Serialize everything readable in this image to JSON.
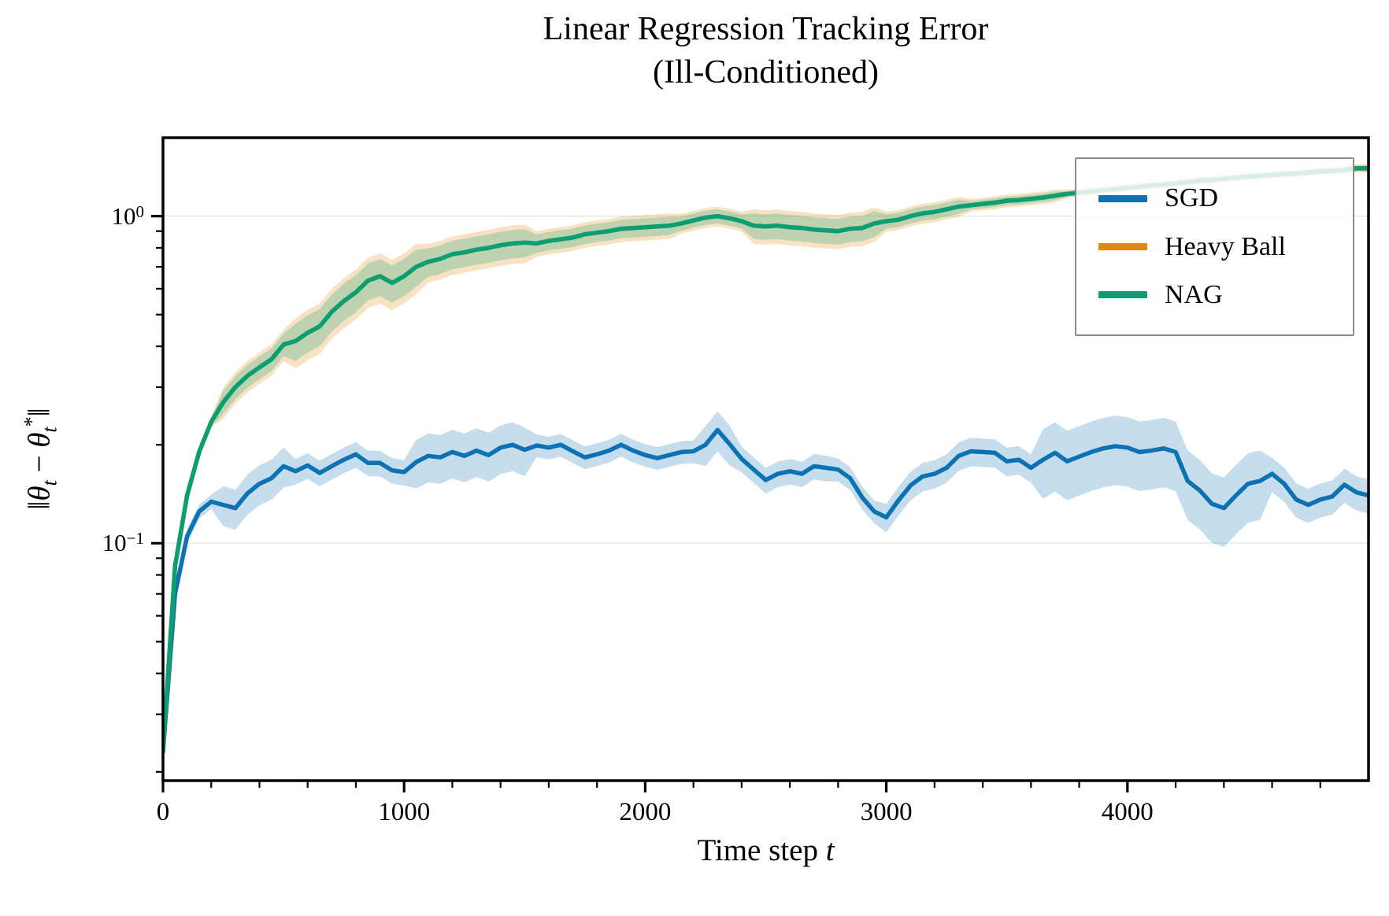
{
  "title_line1": "Linear Regression Tracking Error",
  "title_line2": "(Ill-Conditioned)",
  "labels": {
    "x_pre": "Time step ",
    "x_var": "t",
    "y_open": "‖",
    "y_theta": "θ",
    "y_sub": "t",
    "y_minus": " − ",
    "y_theta2": "θ",
    "y_sub2": "t",
    "y_star": "*",
    "y_close": "‖"
  },
  "chart_data": {
    "type": "line",
    "title": "Linear Regression Tracking Error (Ill-Conditioned)",
    "xlabel": "Time step t",
    "ylabel": "||theta_t - theta_t*||",
    "yscale": "log",
    "ylim": [
      0.0188,
      1.737
    ],
    "xlim": [
      0,
      5000
    ],
    "grid": "major-y only, light gray",
    "legend_position": "upper right",
    "x_start": 0,
    "x_step": 50,
    "x_ticks": [
      {
        "v": 0,
        "label": "0"
      },
      {
        "v": 1000,
        "label": "1000"
      },
      {
        "v": 2000,
        "label": "2000"
      },
      {
        "v": 3000,
        "label": "3000"
      },
      {
        "v": 4000,
        "label": "4000"
      }
    ],
    "x_minor": [
      200,
      400,
      600,
      800,
      1200,
      1400,
      1600,
      1800,
      2200,
      2400,
      2600,
      2800,
      3200,
      3400,
      3600,
      3800,
      4200,
      4400,
      4600,
      4800
    ],
    "y_ticks": [
      {
        "v": 1,
        "base": "10",
        "exp": "0"
      },
      {
        "v": 0.1,
        "base": "10",
        "exp": "−1"
      }
    ],
    "y_minor": [
      0.02,
      0.03,
      0.04,
      0.05,
      0.06,
      0.07,
      0.08,
      0.09,
      0.2,
      0.3,
      0.4,
      0.5,
      0.6,
      0.7,
      0.8,
      0.9
    ],
    "grid_color": "#e8e8e8",
    "axis_color": "#000000",
    "legend_border_color": "#8c8c8c",
    "band_alpha": 0.24,
    "series": [
      {
        "name": "SGD",
        "color": "#0d72b2",
        "mean": [
          0.023,
          0.07,
          0.105,
          0.125,
          0.134,
          0.131,
          0.128,
          0.142,
          0.152,
          0.158,
          0.172,
          0.166,
          0.173,
          0.164,
          0.172,
          0.18,
          0.187,
          0.176,
          0.176,
          0.167,
          0.165,
          0.177,
          0.185,
          0.183,
          0.19,
          0.185,
          0.192,
          0.186,
          0.196,
          0.2,
          0.193,
          0.199,
          0.196,
          0.2,
          0.191,
          0.183,
          0.187,
          0.192,
          0.2,
          0.192,
          0.186,
          0.182,
          0.186,
          0.19,
          0.191,
          0.2,
          0.222,
          0.201,
          0.181,
          0.168,
          0.156,
          0.163,
          0.166,
          0.163,
          0.172,
          0.17,
          0.168,
          0.158,
          0.138,
          0.125,
          0.12,
          0.135,
          0.15,
          0.16,
          0.163,
          0.17,
          0.185,
          0.191,
          0.19,
          0.189,
          0.178,
          0.18,
          0.17,
          0.18,
          0.189,
          0.178,
          0.184,
          0.19,
          0.195,
          0.198,
          0.196,
          0.19,
          0.192,
          0.195,
          0.19,
          0.155,
          0.145,
          0.132,
          0.128,
          0.14,
          0.152,
          0.155,
          0.163,
          0.152,
          0.136,
          0.131,
          0.136,
          0.139,
          0.151,
          0.143,
          0.14
        ],
        "band_frac": [
          0.05,
          0.05,
          0.05,
          0.05,
          0.05,
          0.14,
          0.14,
          0.14,
          0.14,
          0.14,
          0.14,
          0.09,
          0.09,
          0.09,
          0.09,
          0.09,
          0.09,
          0.09,
          0.09,
          0.09,
          0.09,
          0.17,
          0.17,
          0.17,
          0.17,
          0.17,
          0.17,
          0.17,
          0.17,
          0.17,
          0.17,
          0.08,
          0.08,
          0.08,
          0.08,
          0.08,
          0.08,
          0.08,
          0.08,
          0.08,
          0.08,
          0.08,
          0.08,
          0.08,
          0.08,
          0.14,
          0.14,
          0.14,
          0.09,
          0.09,
          0.09,
          0.09,
          0.09,
          0.09,
          0.09,
          0.09,
          0.08,
          0.08,
          0.08,
          0.08,
          0.1,
          0.1,
          0.1,
          0.1,
          0.1,
          0.1,
          0.1,
          0.1,
          0.1,
          0.1,
          0.1,
          0.1,
          0.1,
          0.24,
          0.24,
          0.24,
          0.24,
          0.24,
          0.24,
          0.24,
          0.24,
          0.24,
          0.24,
          0.24,
          0.24,
          0.24,
          0.24,
          0.24,
          0.24,
          0.24,
          0.24,
          0.24,
          0.12,
          0.12,
          0.12,
          0.12,
          0.12,
          0.12,
          0.12,
          0.12,
          0.12
        ]
      },
      {
        "name": "Heavy Ball",
        "color": "#dd8a06",
        "mean": [
          0.023,
          0.085,
          0.14,
          0.19,
          0.235,
          0.27,
          0.3,
          0.325,
          0.345,
          0.365,
          0.405,
          0.415,
          0.44,
          0.46,
          0.51,
          0.55,
          0.585,
          0.635,
          0.655,
          0.625,
          0.655,
          0.7,
          0.725,
          0.74,
          0.765,
          0.775,
          0.79,
          0.8,
          0.815,
          0.825,
          0.83,
          0.825,
          0.84,
          0.85,
          0.86,
          0.88,
          0.89,
          0.9,
          0.915,
          0.92,
          0.925,
          0.93,
          0.935,
          0.95,
          0.97,
          0.99,
          1.0,
          0.985,
          0.965,
          0.935,
          0.93,
          0.935,
          0.925,
          0.92,
          0.91,
          0.905,
          0.9,
          0.915,
          0.92,
          0.95,
          0.965,
          0.975,
          1.0,
          1.02,
          1.03,
          1.05,
          1.07,
          1.08,
          1.09,
          1.1,
          1.115,
          1.12,
          1.13,
          1.14,
          1.155,
          1.17,
          1.18,
          1.19,
          1.2,
          1.21,
          1.22,
          1.23,
          1.24,
          1.25,
          1.26,
          1.27,
          1.285,
          1.29,
          1.3,
          1.31,
          1.32,
          1.33,
          1.335,
          1.345,
          1.35,
          1.36,
          1.37,
          1.375,
          1.385,
          1.4,
          1.4
        ],
        "band_frac": [
          0.04,
          0.04,
          0.04,
          0.04,
          0.04,
          0.11,
          0.11,
          0.11,
          0.11,
          0.11,
          0.11,
          0.175,
          0.175,
          0.175,
          0.175,
          0.175,
          0.175,
          0.175,
          0.175,
          0.175,
          0.175,
          0.175,
          0.135,
          0.135,
          0.135,
          0.135,
          0.135,
          0.135,
          0.135,
          0.135,
          0.135,
          0.09,
          0.09,
          0.09,
          0.09,
          0.09,
          0.09,
          0.09,
          0.09,
          0.09,
          0.09,
          0.09,
          0.09,
          0.07,
          0.07,
          0.07,
          0.07,
          0.07,
          0.07,
          0.12,
          0.12,
          0.12,
          0.12,
          0.12,
          0.12,
          0.12,
          0.12,
          0.12,
          0.12,
          0.12,
          0.07,
          0.07,
          0.07,
          0.07,
          0.07,
          0.07,
          0.07,
          0.045,
          0.045,
          0.045,
          0.045,
          0.045,
          0.045,
          0.045,
          0.045,
          0.03,
          0.03,
          0.03,
          0.03,
          0.03,
          0.03,
          0.03,
          0.03,
          0.03,
          0.03,
          0.03,
          0.03,
          0.03,
          0.03,
          0.03,
          0.03,
          0.03,
          0.03,
          0.03,
          0.03,
          0.03,
          0.03,
          0.03,
          0.03,
          0.03,
          0.03
        ]
      },
      {
        "name": "NAG",
        "color": "#0a9e73",
        "mean": [
          0.023,
          0.085,
          0.14,
          0.19,
          0.235,
          0.27,
          0.3,
          0.325,
          0.345,
          0.365,
          0.405,
          0.415,
          0.44,
          0.46,
          0.51,
          0.55,
          0.585,
          0.635,
          0.655,
          0.625,
          0.655,
          0.7,
          0.725,
          0.74,
          0.765,
          0.775,
          0.79,
          0.8,
          0.815,
          0.825,
          0.83,
          0.825,
          0.84,
          0.85,
          0.86,
          0.88,
          0.89,
          0.9,
          0.915,
          0.92,
          0.925,
          0.93,
          0.935,
          0.95,
          0.97,
          0.99,
          1.0,
          0.985,
          0.965,
          0.935,
          0.93,
          0.935,
          0.925,
          0.92,
          0.91,
          0.905,
          0.9,
          0.915,
          0.92,
          0.95,
          0.965,
          0.975,
          1.0,
          1.02,
          1.03,
          1.05,
          1.07,
          1.08,
          1.09,
          1.1,
          1.115,
          1.12,
          1.13,
          1.14,
          1.155,
          1.17,
          1.18,
          1.19,
          1.2,
          1.21,
          1.22,
          1.23,
          1.24,
          1.25,
          1.26,
          1.27,
          1.285,
          1.29,
          1.3,
          1.31,
          1.32,
          1.33,
          1.335,
          1.345,
          1.35,
          1.36,
          1.37,
          1.375,
          1.385,
          1.4,
          1.4
        ],
        "band_frac": [
          0.03,
          0.03,
          0.03,
          0.03,
          0.03,
          0.08,
          0.08,
          0.08,
          0.08,
          0.08,
          0.08,
          0.13,
          0.13,
          0.13,
          0.13,
          0.13,
          0.13,
          0.13,
          0.13,
          0.13,
          0.13,
          0.13,
          0.1,
          0.1,
          0.1,
          0.1,
          0.1,
          0.1,
          0.1,
          0.1,
          0.1,
          0.065,
          0.065,
          0.065,
          0.065,
          0.065,
          0.065,
          0.065,
          0.065,
          0.065,
          0.065,
          0.065,
          0.065,
          0.05,
          0.05,
          0.05,
          0.05,
          0.05,
          0.05,
          0.09,
          0.09,
          0.09,
          0.09,
          0.09,
          0.09,
          0.09,
          0.09,
          0.09,
          0.09,
          0.09,
          0.05,
          0.05,
          0.05,
          0.05,
          0.05,
          0.05,
          0.05,
          0.03,
          0.03,
          0.03,
          0.03,
          0.03,
          0.03,
          0.03,
          0.03,
          0.02,
          0.02,
          0.02,
          0.02,
          0.02,
          0.02,
          0.02,
          0.02,
          0.02,
          0.02,
          0.02,
          0.02,
          0.02,
          0.02,
          0.02,
          0.02,
          0.02,
          0.02,
          0.02,
          0.02,
          0.02,
          0.02,
          0.02,
          0.02,
          0.02,
          0.02
        ]
      }
    ]
  }
}
